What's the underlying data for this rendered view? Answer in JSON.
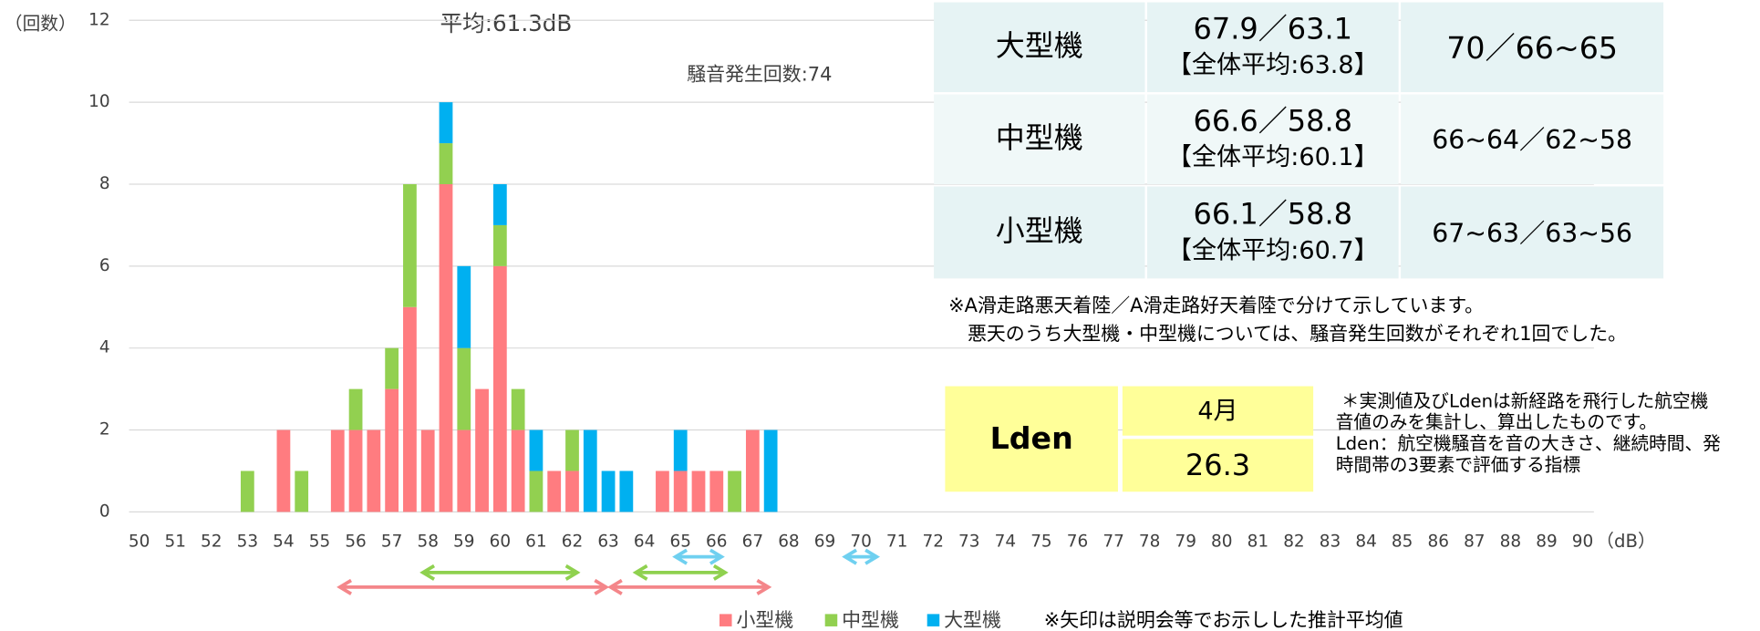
{
  "chart_data": {
    "type": "bar",
    "stacked": true,
    "average_label": "平均:61.3dB",
    "count_label": "騒音発生回数:74",
    "y_unit": "（回数）",
    "x_unit": "（dB）",
    "xlim": [
      50,
      90
    ],
    "xticks": [
      50,
      51,
      52,
      53,
      54,
      55,
      56,
      57,
      58,
      59,
      60,
      61,
      62,
      63,
      64,
      65,
      66,
      67,
      68,
      69,
      70,
      71,
      72,
      73,
      74,
      75,
      76,
      77,
      78,
      79,
      80,
      81,
      82,
      83,
      84,
      85,
      86,
      87,
      88,
      89,
      90
    ],
    "ylim": [
      0,
      12
    ],
    "yticks": [
      0,
      2,
      4,
      6,
      8,
      10,
      12
    ],
    "grid": true,
    "x": [
      53,
      54,
      54.5,
      55.5,
      56,
      56.5,
      57,
      57.5,
      58,
      58.5,
      59,
      59.5,
      60,
      60.5,
      61,
      61.5,
      62,
      62.5,
      63,
      63.5,
      64.5,
      65,
      65.5,
      66,
      66.5,
      67,
      67.5
    ],
    "series": [
      {
        "name": "小型機",
        "color": "#ff7c80",
        "values": [
          0,
          2,
          0,
          2,
          2,
          2,
          3,
          5,
          2,
          8,
          2,
          3,
          6,
          2,
          0,
          1,
          1,
          0,
          0,
          0,
          1,
          1,
          1,
          1,
          0,
          2,
          0
        ]
      },
      {
        "name": "中型機",
        "color": "#92d050",
        "values": [
          1,
          0,
          1,
          0,
          1,
          0,
          1,
          3,
          0,
          1,
          2,
          0,
          1,
          1,
          1,
          0,
          1,
          0,
          0,
          0,
          0,
          0,
          0,
          0,
          1,
          0,
          0
        ]
      },
      {
        "name": "大型機",
        "color": "#00b0f0",
        "values": [
          0,
          0,
          0,
          0,
          0,
          0,
          0,
          0,
          0,
          1,
          2,
          0,
          1,
          0,
          1,
          0,
          0,
          2,
          1,
          1,
          0,
          1,
          0,
          0,
          0,
          0,
          2
        ]
      }
    ],
    "arrow_note": "※矢印は説明会等でお示しした推計平均値",
    "arrows": [
      {
        "color": "#f4868a",
        "range": [
          55.5,
          63
        ]
      },
      {
        "color": "#f4868a",
        "range": [
          63,
          67.5
        ]
      },
      {
        "color": "#8fd14f",
        "range": [
          57.8,
          62.2
        ]
      },
      {
        "color": "#8fd14f",
        "range": [
          63.7,
          66.3
        ]
      },
      {
        "color": "#6fd0f0",
        "range": [
          64.8,
          66.2
        ]
      },
      {
        "color": "#6fd0f0",
        "range": [
          69.5,
          70.5
        ]
      }
    ]
  },
  "table": {
    "rows": [
      {
        "label": "大型機",
        "value": "67.9／63.1",
        "overall": "【全体平均:63.8】",
        "estimate": "70／66~65"
      },
      {
        "label": "中型機",
        "value": "66.6／58.8",
        "overall": "【全体平均:60.1】",
        "estimate": "66~64／62~58"
      },
      {
        "label": "小型機",
        "value": "66.1／58.8",
        "overall": "【全体平均:60.7】",
        "estimate": "67~63／63~56"
      }
    ]
  },
  "notes": [
    "※A滑走路悪天着陸／A滑走路好天着陸で分けて示しています。",
    "　悪天のうち大型機・中型機については、騒音発生回数がそれぞれ1回でした。"
  ],
  "lden": {
    "label": "Lden",
    "month": "4月",
    "value": "26.3"
  },
  "side_notes": [
    "＊実測値及びLdenは新経路を飛行した航空機",
    "音値のみを集計し、算出したものです。",
    "Lden：航空機騒音を音の大きさ、継続時間、発",
    "時間帯の3要素で評価する指標"
  ]
}
